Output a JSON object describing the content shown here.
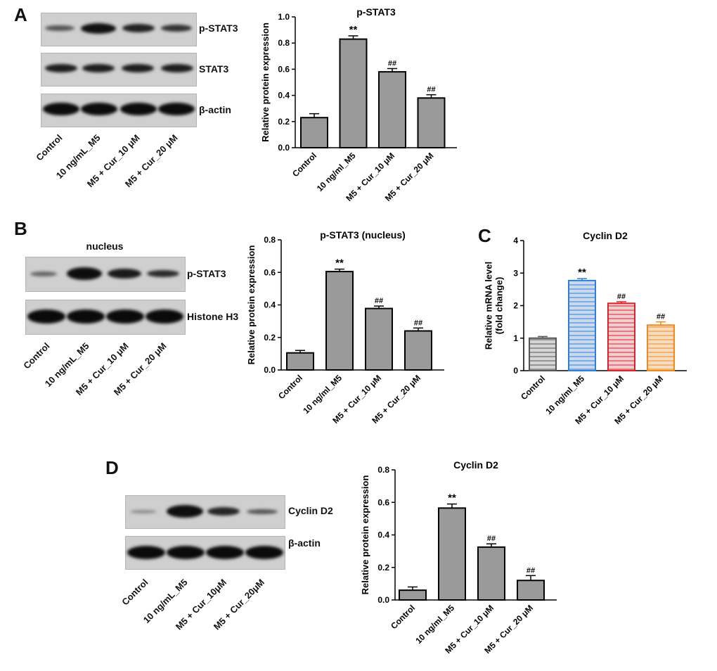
{
  "panel_labels": {
    "a": "A",
    "b": "B",
    "c": "C",
    "d": "D"
  },
  "blots": {
    "a": {
      "rows": [
        "p-STAT3",
        "STAT3",
        "β-actin"
      ],
      "lanes": [
        "Control",
        "10 ng/mL_M5",
        "M5 + Cur_10 μM",
        "M5 + Cur_20 μM"
      ]
    },
    "b": {
      "title": "nucleus",
      "rows": [
        "p-STAT3",
        "Histone H3"
      ],
      "lanes": [
        "Control",
        "10 ng/mL_M5",
        "M5 + Cur_10 μM",
        "M5 + Cur_20 μM"
      ]
    },
    "d": {
      "rows": [
        "Cyclin D2",
        "β-actin"
      ],
      "lanes": [
        "Control",
        "10 ng/mL_M5",
        "M5 + Cur_10μM",
        "M5 + Cur_20μM"
      ]
    }
  },
  "chart_data": [
    {
      "id": "a",
      "type": "bar",
      "title": "p-STAT3",
      "ylabel": "Relative protein expression",
      "xlabel": "",
      "ylim": [
        0,
        1.0
      ],
      "yticks": [
        "0.0",
        "0.2",
        "0.4",
        "0.6",
        "0.8",
        "1.0"
      ],
      "categories": [
        "Control",
        "10 ng/ml_M5",
        "M5 + Cur_10 μM",
        "M5 + Cur_20 μM"
      ],
      "values": [
        0.23,
        0.83,
        0.58,
        0.38
      ],
      "errors": [
        0.03,
        0.025,
        0.025,
        0.025
      ],
      "annotations": [
        "",
        "**",
        "##",
        "##"
      ],
      "colors": [
        "#9a9a9a",
        "#9a9a9a",
        "#9a9a9a",
        "#9a9a9a"
      ]
    },
    {
      "id": "b",
      "type": "bar",
      "title": "p-STAT3 (nucleus)",
      "ylabel": "Relative protein expression",
      "xlabel": "",
      "ylim": [
        0,
        0.8
      ],
      "yticks": [
        "0.0",
        "0.2",
        "0.4",
        "0.6",
        "0.8"
      ],
      "categories": [
        "Control",
        "10 ng/ml_M5",
        "M5 + Cur_10 μM",
        "M5 + Cur_20 μM"
      ],
      "values": [
        0.105,
        0.605,
        0.378,
        0.24
      ],
      "errors": [
        0.015,
        0.015,
        0.015,
        0.018
      ],
      "annotations": [
        "",
        "**",
        "##",
        "##"
      ],
      "colors": [
        "#9a9a9a",
        "#9a9a9a",
        "#9a9a9a",
        "#9a9a9a"
      ]
    },
    {
      "id": "c",
      "type": "bar",
      "title": "Cyclin D2",
      "ylabel": "Relative mRNA level\n(fold change)",
      "xlabel": "",
      "ylim": [
        0,
        4
      ],
      "yticks": [
        "0",
        "1",
        "2",
        "3",
        "4"
      ],
      "categories": [
        "Control",
        "10 ng/ml_M5",
        "M5 + Cur_10 μM",
        "M5 + Cur_20 μM"
      ],
      "values": [
        1.0,
        2.77,
        2.07,
        1.4
      ],
      "errors": [
        0.05,
        0.06,
        0.05,
        0.1
      ],
      "annotations": [
        "",
        "**",
        "##",
        "##"
      ],
      "colors": [
        "#555555",
        "#2f7fd6",
        "#d8242e",
        "#ef8a1e"
      ],
      "fills": [
        "#d5d5d5",
        "#c9d9ef",
        "#f2cdd0",
        "#f8dcc0"
      ],
      "striped": true
    },
    {
      "id": "d",
      "type": "bar",
      "title": "Cyclin D2",
      "ylabel": "Relative protein expression",
      "xlabel": "",
      "ylim": [
        0,
        0.8
      ],
      "yticks": [
        "0.0",
        "0.2",
        "0.4",
        "0.6",
        "0.8"
      ],
      "categories": [
        "Control",
        "10 ng/ml_M5",
        "M5 + Cur_10 μM",
        "M5 + Cur_20 μM"
      ],
      "values": [
        0.06,
        0.565,
        0.325,
        0.12
      ],
      "errors": [
        0.02,
        0.025,
        0.02,
        0.03
      ],
      "annotations": [
        "",
        "**",
        "##",
        "##"
      ],
      "colors": [
        "#9a9a9a",
        "#9a9a9a",
        "#9a9a9a",
        "#9a9a9a"
      ]
    }
  ]
}
